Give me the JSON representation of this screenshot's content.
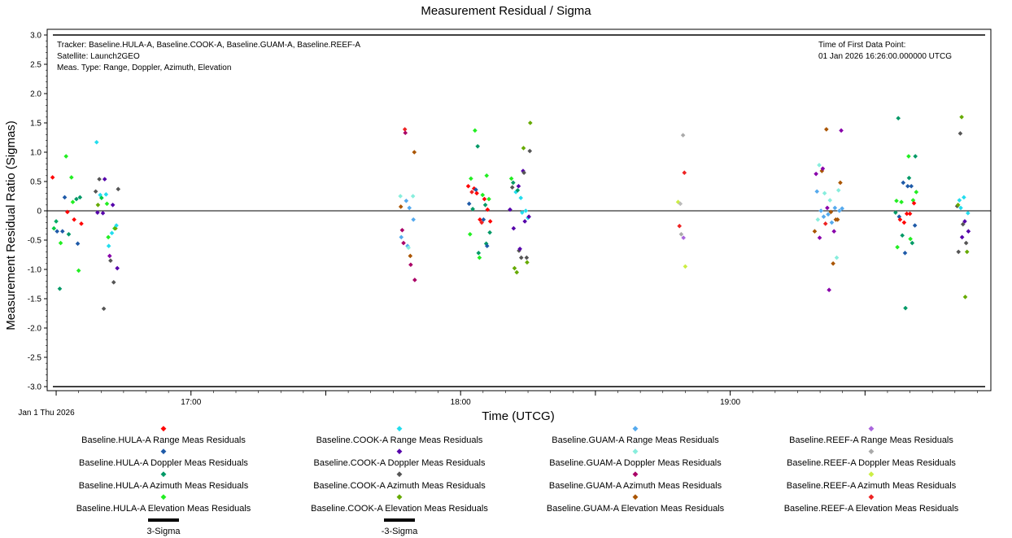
{
  "chart_data": {
    "type": "scatter",
    "title": "Measurement Residual / Sigma",
    "xlabel": "Time (UTCG)",
    "ylabel": "Measurement Residual Ratio (Sigmas)",
    "ylim": [
      -3.1,
      3.1
    ],
    "xlim_minutes": [
      -32,
      178
    ],
    "x_tick_labels": [
      {
        "t": 0,
        "label": "17:00"
      },
      {
        "t": 60,
        "label": "18:00"
      },
      {
        "t": 120,
        "label": "19:00"
      }
    ],
    "x_start_label": "Jan 1 Thu 2026",
    "y_ticks": [
      3.0,
      2.5,
      2.0,
      1.5,
      1.0,
      0.5,
      0,
      -0.5,
      -1.0,
      -1.5,
      -2.0,
      -2.5,
      -3.0
    ],
    "y_tick_labels": [
      "3.0",
      "2.5",
      "2.0",
      "1.5",
      "1.0",
      "0.5",
      "0",
      "-0.5",
      "-1.0",
      "-1.5",
      "-2.0",
      "-2.5",
      "-3.0"
    ],
    "grid": false,
    "legend_position": "bottom",
    "header_left": [
      "Tracker: Baseline.HULA-A, Baseline.COOK-A, Baseline.GUAM-A, Baseline.REEF-A",
      "Satellite: Launch2GEO",
      "Meas. Type: Range, Doppler, Azimuth, Elevation"
    ],
    "header_right": [
      "Time of First Data Point:",
      "01 Jan 2026 16:26:00.000000 UTCG"
    ],
    "sigma_lines": [
      {
        "label": "3-Sigma",
        "value": 3.0
      },
      {
        "label": "-3-Sigma",
        "value": -3.0
      }
    ],
    "points": [
      [
        -30.8,
        0.57,
        "#ff0000"
      ],
      [
        -30.5,
        -0.3,
        "#00cc44"
      ],
      [
        -30.0,
        -0.18,
        "#00aa66"
      ],
      [
        -29.8,
        -0.35,
        "#1e5aa8"
      ],
      [
        -29.2,
        -1.33,
        "#009966"
      ],
      [
        -29.0,
        -0.55,
        "#22ee22"
      ],
      [
        -28.6,
        -0.35,
        "#1e5aa8"
      ],
      [
        -28.1,
        0.23,
        "#1e5aa8"
      ],
      [
        -27.8,
        0.93,
        "#22ee22"
      ],
      [
        -27.5,
        -0.02,
        "#ff0000"
      ],
      [
        -27.2,
        -0.4,
        "#009966"
      ],
      [
        -26.6,
        0.57,
        "#22ee22"
      ],
      [
        -26.3,
        0.15,
        "#22ee22"
      ],
      [
        -26.0,
        -0.15,
        "#ff0000"
      ],
      [
        -25.5,
        0.2,
        "#009966"
      ],
      [
        -25.2,
        -0.56,
        "#1e5aa8"
      ],
      [
        -25.0,
        -1.02,
        "#22ee22"
      ],
      [
        -24.7,
        0.23,
        "#009966"
      ],
      [
        -24.4,
        -0.22,
        "#ff0000"
      ],
      [
        -21.2,
        0.33,
        "#555555"
      ],
      [
        -21.0,
        1.17,
        "#22ddee"
      ],
      [
        -20.8,
        -0.03,
        "#5500aa"
      ],
      [
        -20.7,
        0.1,
        "#66aa00"
      ],
      [
        -20.4,
        0.54,
        "#555555"
      ],
      [
        -20.2,
        0.27,
        "#22ddee"
      ],
      [
        -19.9,
        0.22,
        "#00cc44"
      ],
      [
        -19.6,
        -0.04,
        "#5500aa"
      ],
      [
        -19.4,
        -1.67,
        "#555555"
      ],
      [
        -19.2,
        0.54,
        "#5500aa"
      ],
      [
        -18.9,
        0.28,
        "#22ddee"
      ],
      [
        -18.7,
        0.12,
        "#22ee22"
      ],
      [
        -18.4,
        -0.45,
        "#22ee22"
      ],
      [
        -18.3,
        -0.6,
        "#22ddee"
      ],
      [
        -18.1,
        -0.77,
        "#8800aa"
      ],
      [
        -17.9,
        -0.85,
        "#555555"
      ],
      [
        -17.6,
        -0.38,
        "#22ddee"
      ],
      [
        -17.4,
        0.1,
        "#5500aa"
      ],
      [
        -17.2,
        -1.22,
        "#555555"
      ],
      [
        -17.0,
        -0.3,
        "#22ee22"
      ],
      [
        -16.8,
        -0.3,
        "#66aa00"
      ],
      [
        -16.6,
        -0.25,
        "#22ddee"
      ],
      [
        -16.4,
        -0.98,
        "#5500aa"
      ],
      [
        -16.2,
        0.37,
        "#555555"
      ],
      [
        46.6,
        0.25,
        "#88eedd"
      ],
      [
        46.7,
        0.07,
        "#aa5500"
      ],
      [
        46.8,
        -0.45,
        "#55aaee"
      ],
      [
        47.0,
        -0.33,
        "#aa0066"
      ],
      [
        47.3,
        -0.55,
        "#aa0066"
      ],
      [
        47.6,
        1.39,
        "#ee2222"
      ],
      [
        47.7,
        1.33,
        "#aa0066"
      ],
      [
        47.9,
        0.17,
        "#55aaee"
      ],
      [
        48.2,
        -0.6,
        "#55aaee"
      ],
      [
        48.4,
        -0.63,
        "#88eedd"
      ],
      [
        48.6,
        0.05,
        "#55aaee"
      ],
      [
        48.8,
        -0.77,
        "#aa5500"
      ],
      [
        48.9,
        -0.92,
        "#aa0066"
      ],
      [
        49.4,
        0.25,
        "#88eedd"
      ],
      [
        49.5,
        -0.15,
        "#55aaee"
      ],
      [
        49.7,
        1.0,
        "#aa5500"
      ],
      [
        49.8,
        -1.18,
        "#aa0066"
      ],
      [
        61.7,
        0.42,
        "#ff0000"
      ],
      [
        61.9,
        0.12,
        "#1e5aa8"
      ],
      [
        62.1,
        -0.4,
        "#22ee22"
      ],
      [
        62.3,
        0.55,
        "#22ee22"
      ],
      [
        62.5,
        0.32,
        "#ee2222"
      ],
      [
        62.7,
        0.03,
        "#009966"
      ],
      [
        63.0,
        0.38,
        "#ff0000"
      ],
      [
        63.2,
        1.37,
        "#22ee22"
      ],
      [
        63.4,
        0.36,
        "#1e5aa8"
      ],
      [
        63.6,
        0.3,
        "#ff0000"
      ],
      [
        63.8,
        1.1,
        "#009966"
      ],
      [
        64.0,
        -0.72,
        "#009966"
      ],
      [
        64.2,
        -0.8,
        "#22ee22"
      ],
      [
        64.3,
        -0.15,
        "#ff0000"
      ],
      [
        64.7,
        -0.2,
        "#ee2222"
      ],
      [
        64.9,
        0.27,
        "#22ee22"
      ],
      [
        65.1,
        -0.15,
        "#1e5aa8"
      ],
      [
        65.3,
        0.2,
        "#ff0000"
      ],
      [
        65.5,
        0.1,
        "#009966"
      ],
      [
        65.7,
        -0.56,
        "#009966"
      ],
      [
        65.8,
        0.6,
        "#22ee22"
      ],
      [
        65.9,
        -0.6,
        "#1e5aa8"
      ],
      [
        66.0,
        0.02,
        "#ff0000"
      ],
      [
        66.3,
        0.2,
        "#22ee22"
      ],
      [
        66.5,
        -0.37,
        "#009966"
      ],
      [
        66.6,
        -0.18,
        "#ff0000"
      ],
      [
        71.0,
        0.02,
        "#5500aa"
      ],
      [
        71.3,
        0.55,
        "#22ee22"
      ],
      [
        71.5,
        0.4,
        "#555555"
      ],
      [
        71.7,
        0.48,
        "#009966"
      ],
      [
        71.8,
        -0.3,
        "#5500aa"
      ],
      [
        72.0,
        -0.98,
        "#66aa00"
      ],
      [
        72.3,
        0.32,
        "#22ddee"
      ],
      [
        72.5,
        -1.05,
        "#66aa00"
      ],
      [
        72.7,
        0.35,
        "#009966"
      ],
      [
        72.9,
        0.42,
        "#5500aa"
      ],
      [
        73.0,
        -0.68,
        "#555555"
      ],
      [
        73.2,
        -0.65,
        "#5500aa"
      ],
      [
        73.4,
        0.22,
        "#22ddee"
      ],
      [
        73.5,
        -0.8,
        "#555555"
      ],
      [
        73.7,
        -0.03,
        "#22ddee"
      ],
      [
        73.9,
        0.68,
        "#5500aa"
      ],
      [
        74.0,
        1.07,
        "#66aa00"
      ],
      [
        74.1,
        0.65,
        "#555555"
      ],
      [
        74.3,
        -0.18,
        "#5500aa"
      ],
      [
        74.5,
        0.0,
        "#22ddee"
      ],
      [
        74.7,
        -0.8,
        "#555555"
      ],
      [
        74.8,
        -0.88,
        "#66aa00"
      ],
      [
        75.0,
        -0.12,
        "#22ddee"
      ],
      [
        75.2,
        -0.1,
        "#5500aa"
      ],
      [
        75.4,
        1.02,
        "#555555"
      ],
      [
        75.5,
        1.5,
        "#66aa00"
      ],
      [
        108.4,
        0.15,
        "#ccee44"
      ],
      [
        108.7,
        -0.26,
        "#ee2222"
      ],
      [
        108.9,
        0.12,
        "#bbbbbb"
      ],
      [
        109.1,
        -0.4,
        "#aaaaaa"
      ],
      [
        109.5,
        1.29,
        "#aaaaaa"
      ],
      [
        109.6,
        -0.46,
        "#aa66dd"
      ],
      [
        109.8,
        0.65,
        "#ee2222"
      ],
      [
        110.0,
        -0.95,
        "#ccee44"
      ],
      [
        138.8,
        -0.35,
        "#aa5500"
      ],
      [
        139.1,
        0.63,
        "#8800aa"
      ],
      [
        139.3,
        0.33,
        "#55aaee"
      ],
      [
        139.5,
        -0.15,
        "#88eedd"
      ],
      [
        139.8,
        0.78,
        "#88eedd"
      ],
      [
        139.9,
        -0.46,
        "#8800aa"
      ],
      [
        140.2,
        0.0,
        "#55aaee"
      ],
      [
        140.4,
        0.68,
        "#aa5500"
      ],
      [
        140.6,
        0.72,
        "#8800aa"
      ],
      [
        140.8,
        -0.1,
        "#55aaee"
      ],
      [
        141.0,
        0.3,
        "#88eedd"
      ],
      [
        141.2,
        -0.22,
        "#ee2222"
      ],
      [
        141.4,
        1.39,
        "#aa5500"
      ],
      [
        141.6,
        0.05,
        "#8800aa"
      ],
      [
        141.8,
        -0.06,
        "#55aaee"
      ],
      [
        142.0,
        -1.35,
        "#8800aa"
      ],
      [
        142.2,
        0.18,
        "#88eedd"
      ],
      [
        142.4,
        -0.02,
        "#aa5500"
      ],
      [
        142.6,
        -0.2,
        "#55aaee"
      ],
      [
        142.9,
        -0.9,
        "#aa5500"
      ],
      [
        143.1,
        -0.35,
        "#8800aa"
      ],
      [
        143.3,
        0.05,
        "#55aaee"
      ],
      [
        143.5,
        -0.15,
        "#aa5500"
      ],
      [
        143.7,
        -0.8,
        "#88eedd"
      ],
      [
        143.9,
        -0.15,
        "#aa5500"
      ],
      [
        144.1,
        0.35,
        "#88eedd"
      ],
      [
        144.3,
        0.0,
        "#55aaee"
      ],
      [
        144.5,
        0.48,
        "#aa5500"
      ],
      [
        144.7,
        1.37,
        "#8800aa"
      ],
      [
        144.9,
        0.04,
        "#55aaee"
      ],
      [
        156.8,
        -0.03,
        "#009966"
      ],
      [
        157.0,
        0.17,
        "#22ee22"
      ],
      [
        157.2,
        -0.62,
        "#22ee22"
      ],
      [
        157.4,
        1.58,
        "#009966"
      ],
      [
        157.6,
        -0.1,
        "#1e5aa8"
      ],
      [
        157.8,
        -0.15,
        "#ff0000"
      ],
      [
        158.1,
        0.15,
        "#22ee22"
      ],
      [
        158.3,
        -0.42,
        "#009966"
      ],
      [
        158.5,
        0.48,
        "#1e5aa8"
      ],
      [
        158.7,
        -0.2,
        "#ff0000"
      ],
      [
        158.9,
        -0.72,
        "#1e5aa8"
      ],
      [
        159.0,
        -1.66,
        "#009966"
      ],
      [
        159.3,
        -0.05,
        "#ff0000"
      ],
      [
        159.5,
        0.42,
        "#1e5aa8"
      ],
      [
        159.7,
        0.93,
        "#22ee22"
      ],
      [
        159.8,
        0.56,
        "#009966"
      ],
      [
        160.0,
        -0.05,
        "#ff0000"
      ],
      [
        160.1,
        -0.48,
        "#22ee22"
      ],
      [
        160.3,
        0.42,
        "#1e5aa8"
      ],
      [
        160.5,
        -0.55,
        "#009966"
      ],
      [
        160.7,
        0.18,
        "#22ee22"
      ],
      [
        160.9,
        0.13,
        "#ff0000"
      ],
      [
        161.1,
        -0.25,
        "#1e5aa8"
      ],
      [
        161.2,
        0.93,
        "#009966"
      ],
      [
        161.4,
        0.32,
        "#22ee22"
      ],
      [
        170.5,
        0.08,
        "#555555"
      ],
      [
        170.7,
        0.1,
        "#66aa00"
      ],
      [
        170.8,
        -0.7,
        "#555555"
      ],
      [
        171.0,
        0.18,
        "#22ddee"
      ],
      [
        171.2,
        1.32,
        "#555555"
      ],
      [
        171.3,
        0.05,
        "#22ddee"
      ],
      [
        171.5,
        1.6,
        "#66aa00"
      ],
      [
        171.6,
        -0.45,
        "#5500aa"
      ],
      [
        171.8,
        -0.23,
        "#555555"
      ],
      [
        172.0,
        0.23,
        "#22ddee"
      ],
      [
        172.2,
        -0.18,
        "#5500aa"
      ],
      [
        172.3,
        -1.47,
        "#66aa00"
      ],
      [
        172.5,
        -0.55,
        "#555555"
      ],
      [
        172.7,
        -0.7,
        "#66aa00"
      ],
      [
        172.9,
        -0.04,
        "#22ddee"
      ],
      [
        173.0,
        -0.35,
        "#5500aa"
      ]
    ],
    "series": [
      {
        "name": "Baseline.HULA-A Range Meas Residuals",
        "color": "#ff0000"
      },
      {
        "name": "Baseline.HULA-A Doppler Meas Residuals",
        "color": "#1e5aa8"
      },
      {
        "name": "Baseline.HULA-A Azimuth Meas Residuals",
        "color": "#009966"
      },
      {
        "name": "Baseline.HULA-A Elevation Meas Residuals",
        "color": "#22ee22"
      },
      {
        "name": "Baseline.COOK-A Range Meas Residuals",
        "color": "#22ddee"
      },
      {
        "name": "Baseline.COOK-A Doppler Meas Residuals",
        "color": "#5500aa"
      },
      {
        "name": "Baseline.COOK-A Azimuth Meas Residuals",
        "color": "#555555"
      },
      {
        "name": "Baseline.COOK-A Elevation Meas Residuals",
        "color": "#66aa00"
      },
      {
        "name": "Baseline.GUAM-A Range Meas Residuals",
        "color": "#55aaee"
      },
      {
        "name": "Baseline.GUAM-A Doppler Meas Residuals",
        "color": "#88eedd"
      },
      {
        "name": "Baseline.GUAM-A Azimuth Meas Residuals",
        "color": "#aa0066"
      },
      {
        "name": "Baseline.GUAM-A Elevation Meas Residuals",
        "color": "#aa5500"
      },
      {
        "name": "Baseline.REEF-A Range Meas Residuals",
        "color": "#aa66dd"
      },
      {
        "name": "Baseline.REEF-A Doppler Meas Residuals",
        "color": "#aaaaaa"
      },
      {
        "name": "Baseline.REEF-A Azimuth Meas Residuals",
        "color": "#ccee44"
      },
      {
        "name": "Baseline.REEF-A Elevation Meas Residuals",
        "color": "#ee2222"
      }
    ]
  }
}
